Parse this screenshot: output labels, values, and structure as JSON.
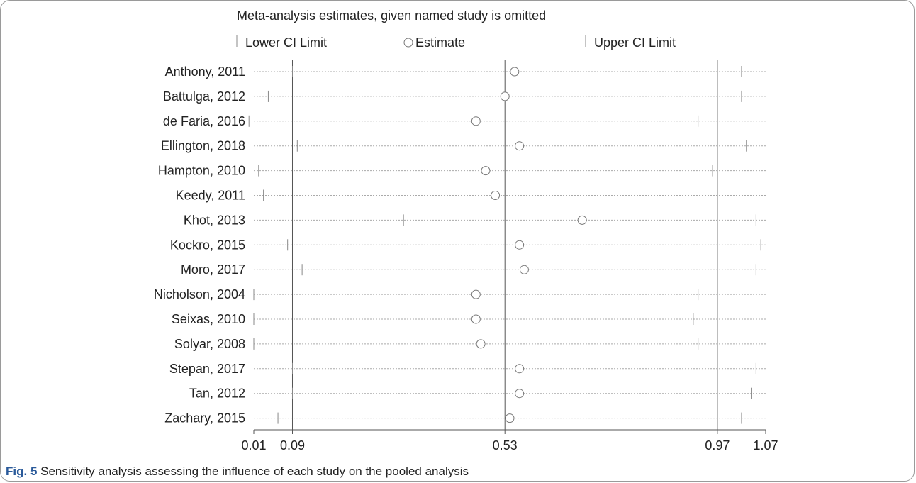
{
  "caption": {
    "label": "Fig. 5",
    "text": "Sensitivity analysis assessing the influence of each study on the pooled analysis"
  },
  "chart_data": {
    "type": "forest",
    "title": "Meta-analysis estimates, given named study is omitted",
    "legend": {
      "lower": "Lower CI Limit",
      "estimate": "Estimate",
      "upper": "Upper CI Limit"
    },
    "xlim": [
      0.01,
      1.07
    ],
    "x_ticks": [
      0.01,
      0.09,
      0.53,
      0.97,
      1.07
    ],
    "x_tick_labels": [
      "0.01",
      "0.09",
      "0.53",
      "0.97",
      "1.07"
    ],
    "reference_lines": [
      0.09,
      0.53,
      0.97
    ],
    "studies": [
      {
        "name": "Anthony, 2011",
        "lower": 0.09,
        "estimate": 0.55,
        "upper": 1.02
      },
      {
        "name": "Battulga, 2012",
        "lower": 0.04,
        "estimate": 0.53,
        "upper": 1.02
      },
      {
        "name": "de Faria, 2016",
        "lower": 0.0,
        "estimate": 0.47,
        "upper": 0.93
      },
      {
        "name": "Ellington, 2018",
        "lower": 0.1,
        "estimate": 0.56,
        "upper": 1.03
      },
      {
        "name": "Hampton, 2010",
        "lower": 0.02,
        "estimate": 0.49,
        "upper": 0.96
      },
      {
        "name": "Keedy, 2011",
        "lower": 0.03,
        "estimate": 0.51,
        "upper": 0.99
      },
      {
        "name": "Khot, 2013",
        "lower": 0.32,
        "estimate": 0.69,
        "upper": 1.05
      },
      {
        "name": "Kockro, 2015",
        "lower": 0.08,
        "estimate": 0.56,
        "upper": 1.06
      },
      {
        "name": "Moro, 2017",
        "lower": 0.11,
        "estimate": 0.57,
        "upper": 1.05
      },
      {
        "name": "Nicholson, 2004",
        "lower": 0.01,
        "estimate": 0.47,
        "upper": 0.93
      },
      {
        "name": "Seixas, 2010",
        "lower": 0.01,
        "estimate": 0.47,
        "upper": 0.92
      },
      {
        "name": "Solyar, 2008",
        "lower": 0.01,
        "estimate": 0.48,
        "upper": 0.93
      },
      {
        "name": "Stepan, 2017",
        "lower": 0.09,
        "estimate": 0.56,
        "upper": 1.05
      },
      {
        "name": "Tan, 2012",
        "lower": 0.09,
        "estimate": 0.56,
        "upper": 1.04
      },
      {
        "name": "Zachary, 2015",
        "lower": 0.06,
        "estimate": 0.54,
        "upper": 1.02
      }
    ]
  }
}
